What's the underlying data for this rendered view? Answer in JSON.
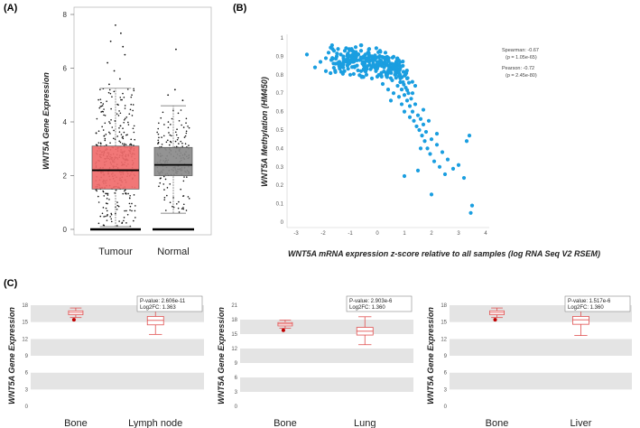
{
  "panels": {
    "a": "(A)",
    "b": "(B)",
    "c": "(C)"
  },
  "colors": {
    "tumour_box": "#f06b6b",
    "normal_box": "#8a8a8a",
    "scatter_point": "#1a9ee0",
    "c_box": "#e05050",
    "c_band": "#e4e4e4"
  },
  "chart_data": [
    {
      "type": "box",
      "panel": "A",
      "title": "",
      "ylabel": "WNT5A Gene Expression",
      "ylim": [
        0,
        8
      ],
      "yticks": [
        "0",
        "2",
        "4",
        "6",
        "8"
      ],
      "categories": [
        "Tumour",
        "Normal"
      ],
      "boxes": [
        {
          "name": "Tumour",
          "whisker_low": 0.1,
          "q1": 1.5,
          "median": 2.2,
          "q3": 3.1,
          "whisker_high": 5.25,
          "max_outlier": 7.6
        },
        {
          "name": "Normal",
          "whisker_low": 0.6,
          "q1": 2.0,
          "median": 2.4,
          "q3": 3.05,
          "whisker_high": 4.6,
          "max_outlier": 6.7
        }
      ]
    },
    {
      "type": "scatter",
      "panel": "B",
      "xlabel": "WNT5A mRNA expression z-score relative to all samples (log RNA Seq V2 RSEM)",
      "ylabel": "WNT5A Methylation (HM450)",
      "xlim": [
        -3,
        4
      ],
      "ylim": [
        0,
        1
      ],
      "xticks": [
        "-3",
        "-2",
        "-1",
        "0",
        "1",
        "2",
        "3",
        "4"
      ],
      "yticks": [
        "0",
        "0.1",
        "0.2",
        "0.3",
        "0.4",
        "0.5",
        "0.6",
        "0.7",
        "0.8",
        "0.9",
        "1"
      ],
      "stats": {
        "spearman": "Spearman: -0.67",
        "spearman_p": "(p = 1.05e-65)",
        "pearson": "Pearson: -0.72",
        "pearson_p": "(p = 2.45e-80)"
      },
      "points": [
        [
          -2.6,
          0.91
        ],
        [
          -2.3,
          0.84
        ],
        [
          -2.1,
          0.87
        ],
        [
          -1.9,
          0.89
        ],
        [
          -1.8,
          0.92
        ],
        [
          -1.7,
          0.88
        ],
        [
          -1.6,
          0.93
        ],
        [
          -1.55,
          0.86
        ],
        [
          -1.5,
          0.9
        ],
        [
          -1.45,
          0.94
        ],
        [
          -1.4,
          0.87
        ],
        [
          -1.35,
          0.91
        ],
        [
          -1.3,
          0.85
        ],
        [
          -1.25,
          0.89
        ],
        [
          -1.2,
          0.93
        ],
        [
          -1.15,
          0.88
        ],
        [
          -1.1,
          0.91
        ],
        [
          -1.05,
          0.86
        ],
        [
          -1.0,
          0.9
        ],
        [
          -0.95,
          0.94
        ],
        [
          -0.9,
          0.87
        ],
        [
          -0.85,
          0.92
        ],
        [
          -0.8,
          0.89
        ],
        [
          -0.75,
          0.85
        ],
        [
          -0.7,
          0.91
        ],
        [
          -0.65,
          0.88
        ],
        [
          -0.6,
          0.93
        ],
        [
          -0.55,
          0.86
        ],
        [
          -0.5,
          0.9
        ],
        [
          -0.45,
          0.84
        ],
        [
          -0.4,
          0.89
        ],
        [
          -0.35,
          0.92
        ],
        [
          -0.3,
          0.87
        ],
        [
          -0.25,
          0.83
        ],
        [
          -0.2,
          0.9
        ],
        [
          -0.15,
          0.86
        ],
        [
          -0.1,
          0.88
        ],
        [
          -0.05,
          0.82
        ],
        [
          0.0,
          0.87
        ],
        [
          0.05,
          0.85
        ],
        [
          0.1,
          0.9
        ],
        [
          0.15,
          0.81
        ],
        [
          0.2,
          0.86
        ],
        [
          0.25,
          0.84
        ],
        [
          0.3,
          0.88
        ],
        [
          0.35,
          0.79
        ],
        [
          0.4,
          0.85
        ],
        [
          0.45,
          0.82
        ],
        [
          0.5,
          0.86
        ],
        [
          0.55,
          0.77
        ],
        [
          0.6,
          0.83
        ],
        [
          0.65,
          0.8
        ],
        [
          0.7,
          0.84
        ],
        [
          0.75,
          0.74
        ],
        [
          0.8,
          0.81
        ],
        [
          0.85,
          0.78
        ],
        [
          0.9,
          0.72
        ],
        [
          0.95,
          0.76
        ],
        [
          1.0,
          0.69
        ],
        [
          1.05,
          0.73
        ],
        [
          1.1,
          0.66
        ],
        [
          1.15,
          0.7
        ],
        [
          1.2,
          0.63
        ],
        [
          1.25,
          0.67
        ],
        [
          1.3,
          0.6
        ],
        [
          1.35,
          0.55
        ],
        [
          1.4,
          0.64
        ],
        [
          1.45,
          0.52
        ],
        [
          1.5,
          0.58
        ],
        [
          1.55,
          0.5
        ],
        [
          1.6,
          0.56
        ],
        [
          1.65,
          0.47
        ],
        [
          1.7,
          0.53
        ],
        [
          1.75,
          0.44
        ],
        [
          1.8,
          0.49
        ],
        [
          1.85,
          0.4
        ],
        [
          1.9,
          0.55
        ],
        [
          1.95,
          0.37
        ],
        [
          2.0,
          0.45
        ],
        [
          2.1,
          0.33
        ],
        [
          2.2,
          0.42
        ],
        [
          2.3,
          0.3
        ],
        [
          2.4,
          0.38
        ],
        [
          2.6,
          0.34
        ],
        [
          2.8,
          0.29
        ],
        [
          3.0,
          0.31
        ],
        [
          3.2,
          0.24
        ],
        [
          3.3,
          0.44
        ],
        [
          3.4,
          0.47
        ],
        [
          3.5,
          0.09
        ],
        [
          3.45,
          0.05
        ],
        [
          1.0,
          0.25
        ],
        [
          1.5,
          0.28
        ],
        [
          2.0,
          0.15
        ],
        [
          0.2,
          0.75
        ],
        [
          -0.2,
          0.78
        ],
        [
          0.6,
          0.7
        ],
        [
          0.9,
          0.64
        ],
        [
          1.2,
          0.57
        ],
        [
          -1.0,
          0.8
        ],
        [
          -0.6,
          0.82
        ],
        [
          0.4,
          0.72
        ],
        [
          1.6,
          0.4
        ],
        [
          2.5,
          0.26
        ],
        [
          -0.3,
          0.94
        ],
        [
          0.1,
          0.93
        ],
        [
          -0.8,
          0.95
        ],
        [
          -1.9,
          0.82
        ],
        [
          0.7,
          0.87
        ],
        [
          0.3,
          0.92
        ],
        [
          1.1,
          0.78
        ],
        [
          1.4,
          0.74
        ],
        [
          -0.4,
          0.8
        ],
        [
          0.0,
          0.79
        ],
        [
          0.8,
          0.68
        ],
        [
          1.3,
          0.7
        ],
        [
          1.7,
          0.61
        ],
        [
          2.2,
          0.48
        ],
        [
          1.0,
          0.6
        ],
        [
          0.5,
          0.66
        ]
      ]
    },
    {
      "type": "box",
      "panel": "C1",
      "ylabel": "WNT5A Gene Expression",
      "categories": [
        "Bone",
        "Lymph node"
      ],
      "ylim": [
        0,
        18
      ],
      "yticks": [
        "0",
        "3",
        "6",
        "9",
        "12",
        "15",
        "18"
      ],
      "pvalue": "P-value: 2.606e-11",
      "log2fc": "Log2FC: 1.363",
      "boxes": [
        {
          "name": "Bone",
          "whisker_low": 15.8,
          "q1": 16.3,
          "median": 16.7,
          "q3": 17.0,
          "whisker_high": 17.5,
          "outlier": 15.4
        },
        {
          "name": "Lymph node",
          "whisker_low": 12.8,
          "q1": 14.5,
          "median": 15.3,
          "q3": 16.0,
          "whisker_high": 17.4
        }
      ]
    },
    {
      "type": "box",
      "panel": "C2",
      "ylabel": "WNT5A Gene Expression",
      "categories": [
        "Bone",
        "Lung"
      ],
      "ylim": [
        0,
        21
      ],
      "yticks": [
        "0",
        "3",
        "6",
        "9",
        "12",
        "15",
        "18",
        "21"
      ],
      "pvalue": "P-value: 2.903e-6",
      "log2fc": "Log2FC: 1.360",
      "boxes": [
        {
          "name": "Bone",
          "whisker_low": 16.2,
          "q1": 16.7,
          "median": 17.1,
          "q3": 17.4,
          "whisker_high": 17.9,
          "outlier": 15.8
        },
        {
          "name": "Lung",
          "whisker_low": 12.8,
          "q1": 14.8,
          "median": 15.6,
          "q3": 16.4,
          "whisker_high": 18.6
        }
      ]
    },
    {
      "type": "box",
      "panel": "C3",
      "ylabel": "WNT5A Gene Expression",
      "categories": [
        "Bone",
        "Liver"
      ],
      "ylim": [
        0,
        18
      ],
      "yticks": [
        "0",
        "3",
        "6",
        "9",
        "12",
        "15",
        "18"
      ],
      "pvalue": "P-value: 1.517e-6",
      "log2fc": "Log2FC: 1.360",
      "boxes": [
        {
          "name": "Bone",
          "whisker_low": 15.8,
          "q1": 16.3,
          "median": 16.7,
          "q3": 17.0,
          "whisker_high": 17.5,
          "outlier": 15.4
        },
        {
          "name": "Liver",
          "whisker_low": 12.6,
          "q1": 14.6,
          "median": 15.4,
          "q3": 16.0,
          "whisker_high": 17.4
        }
      ]
    }
  ]
}
